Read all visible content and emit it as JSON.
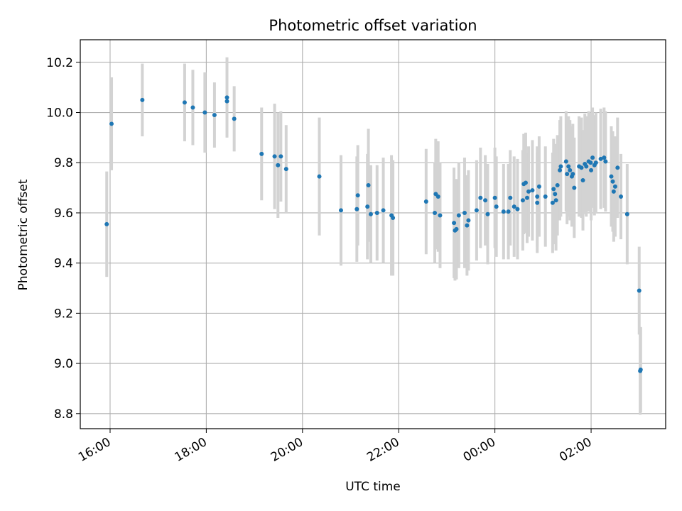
{
  "chart_data": {
    "type": "scatter",
    "title": "Photometric offset variation",
    "xlabel": "UTC time",
    "ylabel": "Photometric offset",
    "x_unit": "hours since 15:00 UTC",
    "xlim": [
      0.38,
      12.55
    ],
    "ylim": [
      8.74,
      10.29
    ],
    "x_ticks": [
      {
        "value": 1,
        "label": "16:00"
      },
      {
        "value": 3,
        "label": "18:00"
      },
      {
        "value": 5,
        "label": "20:00"
      },
      {
        "value": 7,
        "label": "22:00"
      },
      {
        "value": 9,
        "label": "00:00"
      },
      {
        "value": 11,
        "label": "02:00"
      }
    ],
    "y_ticks": [
      {
        "value": 8.8,
        "label": "8.8"
      },
      {
        "value": 9.0,
        "label": "9.0"
      },
      {
        "value": 9.2,
        "label": "9.2"
      },
      {
        "value": 9.4,
        "label": "9.4"
      },
      {
        "value": 9.6,
        "label": "9.6"
      },
      {
        "value": 9.8,
        "label": "9.8"
      },
      {
        "value": 10.0,
        "label": "10.0"
      },
      {
        "value": 10.2,
        "label": "10.2"
      }
    ],
    "grid": true,
    "colors": {
      "points": "#1f77b4",
      "errorbars": "#d3d3d3",
      "grid": "#b0b0b0"
    },
    "points": [
      [
        0.93,
        9.555,
        0.21
      ],
      [
        1.03,
        9.955,
        0.185
      ],
      [
        1.67,
        10.05,
        0.145
      ],
      [
        2.55,
        10.04,
        0.155
      ],
      [
        2.72,
        10.02,
        0.15
      ],
      [
        2.97,
        10.0,
        0.16
      ],
      [
        3.17,
        9.99,
        0.13
      ],
      [
        3.43,
        10.06,
        0.16
      ],
      [
        3.43,
        10.045,
        0.13
      ],
      [
        3.58,
        9.975,
        0.13
      ],
      [
        4.15,
        9.835,
        0.185
      ],
      [
        4.42,
        9.825,
        0.21
      ],
      [
        4.49,
        9.79,
        0.21
      ],
      [
        4.55,
        9.825,
        0.18
      ],
      [
        4.66,
        9.775,
        0.175
      ],
      [
        5.35,
        9.745,
        0.235
      ],
      [
        5.8,
        9.61,
        0.22
      ],
      [
        6.13,
        9.615,
        0.21
      ],
      [
        6.15,
        9.67,
        0.2
      ],
      [
        6.35,
        9.625,
        0.21
      ],
      [
        6.37,
        9.71,
        0.225
      ],
      [
        6.42,
        9.595,
        0.195
      ],
      [
        6.55,
        9.6,
        0.19
      ],
      [
        6.68,
        9.61,
        0.21
      ],
      [
        6.85,
        9.59,
        0.24
      ],
      [
        6.88,
        9.58,
        0.23
      ],
      [
        7.57,
        9.645,
        0.21
      ],
      [
        7.75,
        9.6,
        0.2
      ],
      [
        7.77,
        9.675,
        0.22
      ],
      [
        7.82,
        9.665,
        0.22
      ],
      [
        7.86,
        9.59,
        0.21
      ],
      [
        8.15,
        9.56,
        0.22
      ],
      [
        8.17,
        9.53,
        0.2
      ],
      [
        8.2,
        9.535,
        0.2
      ],
      [
        8.25,
        9.59,
        0.21
      ],
      [
        8.37,
        9.6,
        0.22
      ],
      [
        8.42,
        9.55,
        0.2
      ],
      [
        8.45,
        9.57,
        0.2
      ],
      [
        8.62,
        9.61,
        0.2
      ],
      [
        8.7,
        9.66,
        0.2
      ],
      [
        8.8,
        9.65,
        0.18
      ],
      [
        8.85,
        9.595,
        0.2
      ],
      [
        9.0,
        9.66,
        0.2
      ],
      [
        9.03,
        9.625,
        0.2
      ],
      [
        9.18,
        9.605,
        0.19
      ],
      [
        9.28,
        9.605,
        0.19
      ],
      [
        9.32,
        9.66,
        0.19
      ],
      [
        9.4,
        9.625,
        0.2
      ],
      [
        9.47,
        9.615,
        0.2
      ],
      [
        9.58,
        9.65,
        0.2
      ],
      [
        9.6,
        9.715,
        0.2
      ],
      [
        9.64,
        9.72,
        0.2
      ],
      [
        9.67,
        9.66,
        0.18
      ],
      [
        9.7,
        9.685,
        0.18
      ],
      [
        9.78,
        9.69,
        0.2
      ],
      [
        9.88,
        9.64,
        0.2
      ],
      [
        9.88,
        9.665,
        0.2
      ],
      [
        9.92,
        9.705,
        0.2
      ],
      [
        10.05,
        9.665,
        0.2
      ],
      [
        10.2,
        9.64,
        0.2
      ],
      [
        10.22,
        9.695,
        0.2
      ],
      [
        10.25,
        9.675,
        0.2
      ],
      [
        10.27,
        9.65,
        0.2
      ],
      [
        10.3,
        9.71,
        0.2
      ],
      [
        10.35,
        9.77,
        0.2
      ],
      [
        10.37,
        9.785,
        0.2
      ],
      [
        10.48,
        9.805,
        0.2
      ],
      [
        10.5,
        9.755,
        0.2
      ],
      [
        10.53,
        9.785,
        0.2
      ],
      [
        10.56,
        9.77,
        0.2
      ],
      [
        10.6,
        9.745,
        0.2
      ],
      [
        10.62,
        9.755,
        0.2
      ],
      [
        10.65,
        9.7,
        0.2
      ],
      [
        10.75,
        9.785,
        0.2
      ],
      [
        10.8,
        9.78,
        0.2
      ],
      [
        10.83,
        9.73,
        0.2
      ],
      [
        10.87,
        9.795,
        0.2
      ],
      [
        10.9,
        9.785,
        0.2
      ],
      [
        10.95,
        9.805,
        0.2
      ],
      [
        10.99,
        9.8,
        0.2
      ],
      [
        11.0,
        9.77,
        0.2
      ],
      [
        11.03,
        9.82,
        0.2
      ],
      [
        11.07,
        9.79,
        0.2
      ],
      [
        11.1,
        9.8,
        0.2
      ],
      [
        11.2,
        9.815,
        0.2
      ],
      [
        11.27,
        9.82,
        0.2
      ],
      [
        11.3,
        9.805,
        0.2
      ],
      [
        11.42,
        9.745,
        0.2
      ],
      [
        11.45,
        9.725,
        0.2
      ],
      [
        11.47,
        9.685,
        0.2
      ],
      [
        11.5,
        9.705,
        0.2
      ],
      [
        11.55,
        9.78,
        0.2
      ],
      [
        11.62,
        9.665,
        0.17
      ],
      [
        11.75,
        9.595,
        0.2
      ],
      [
        12.0,
        9.29,
        0.175
      ],
      [
        12.02,
        8.97,
        0.175
      ],
      [
        12.03,
        8.975,
        0.17
      ]
    ]
  }
}
